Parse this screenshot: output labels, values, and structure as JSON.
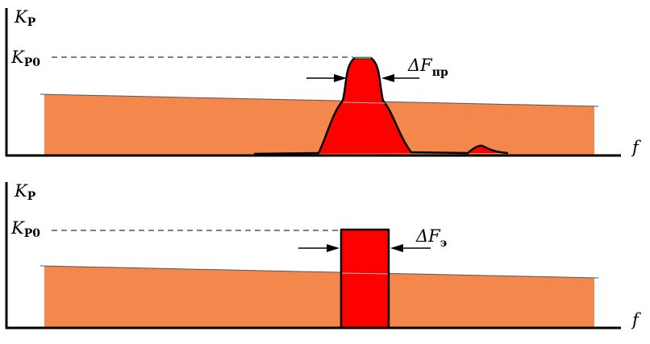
{
  "top_panel": {
    "y_axis_label": "K",
    "y_axis_label_sub": "P",
    "level_label": "K",
    "level_label_sub": "P0",
    "bandwidth_label": "ΔF",
    "bandwidth_label_sub": "пр",
    "x_axis_label": "f"
  },
  "bottom_panel": {
    "y_axis_label": "K",
    "y_axis_label_sub": "P",
    "level_label": "K",
    "level_label_sub": "P0",
    "bandwidth_label": "ΔF",
    "bandwidth_label_sub": "э",
    "x_axis_label": "f"
  },
  "colors": {
    "noise_fill": "#f4874b",
    "signal_fill": "#ff0000",
    "axis": "#000000"
  }
}
